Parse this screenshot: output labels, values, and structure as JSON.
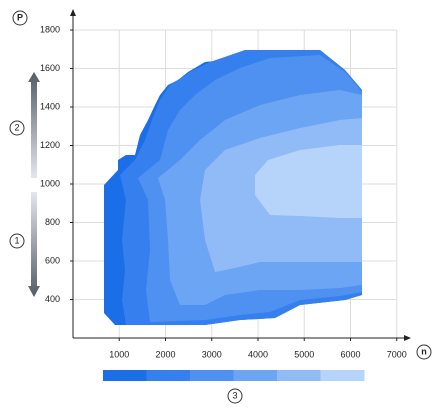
{
  "chart_data": {
    "type": "contour",
    "x_label": "n",
    "y_label": "P",
    "xlim": [
      0,
      7200
    ],
    "ylim": [
      200,
      1800
    ],
    "xticks": [
      1000,
      2000,
      3000,
      4000,
      5000,
      6000,
      7000
    ],
    "yticks": [
      400,
      600,
      800,
      1000,
      1200,
      1400,
      1600,
      1800
    ],
    "grid": true,
    "colors": [
      "#1a6ee8",
      "#3580ee",
      "#4f91f0",
      "#6ca5f3",
      "#90bbf6",
      "#b6d4f9"
    ],
    "callouts": [
      "1",
      "2",
      "3"
    ]
  }
}
